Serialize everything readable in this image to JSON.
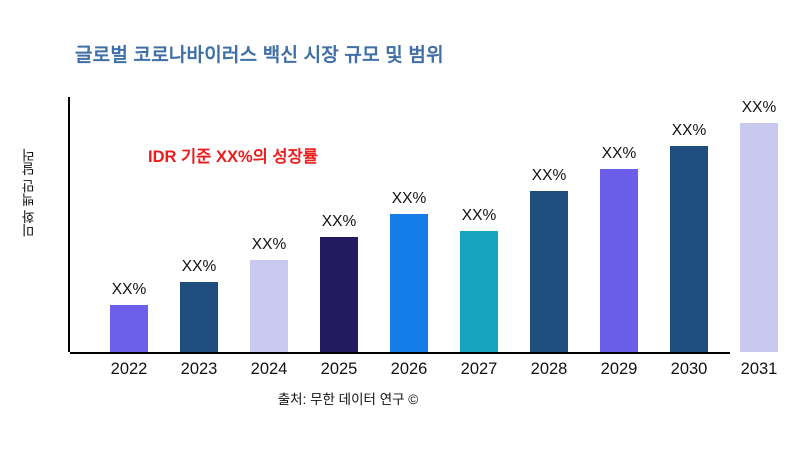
{
  "header": {
    "title": "글로벌 코로나바이러스 백신 시장 규모 및 범위",
    "title_color": "#3F6FA6"
  },
  "annotation": {
    "text": "IDR 기준 XX%의 성장률",
    "color": "#EE1C1C"
  },
  "axes": {
    "y_label": "미화 백만 달러"
  },
  "footer": {
    "source": "출처: 무한 데이터 연구 ©"
  },
  "chart_data": {
    "type": "bar",
    "title": "글로벌 코로나바이러스 백신 시장 규모 및 범위",
    "categories": [
      "2022",
      "2023",
      "2024",
      "2025",
      "2026",
      "2027",
      "2028",
      "2029",
      "2030",
      "2031"
    ],
    "values": [
      20.5,
      30.6,
      40.2,
      50.2,
      60.3,
      52.8,
      70.3,
      79.9,
      90,
      100
    ],
    "bar_labels": [
      "XX%",
      "XX%",
      "XX%",
      "XX%",
      "XX%",
      "XX%",
      "XX%",
      "XX%",
      "XX%",
      "XX%"
    ],
    "bar_colors": [
      "#6C5FE8",
      "#1F4E7E",
      "#C9C9F2",
      "#221B60",
      "#147DE8",
      "#16A4BE",
      "#1F4E7E",
      "#6A5EE8",
      "#1F4E7E",
      "#C9C9F0"
    ],
    "xlabel": "",
    "ylabel": "미화 백만 달러",
    "ylim": [
      0,
      110
    ],
    "grid": false,
    "legend": false,
    "annotation": "IDR 기준 XX%의 성장률",
    "source": "출처: 무한 데이터 연구 ©"
  }
}
